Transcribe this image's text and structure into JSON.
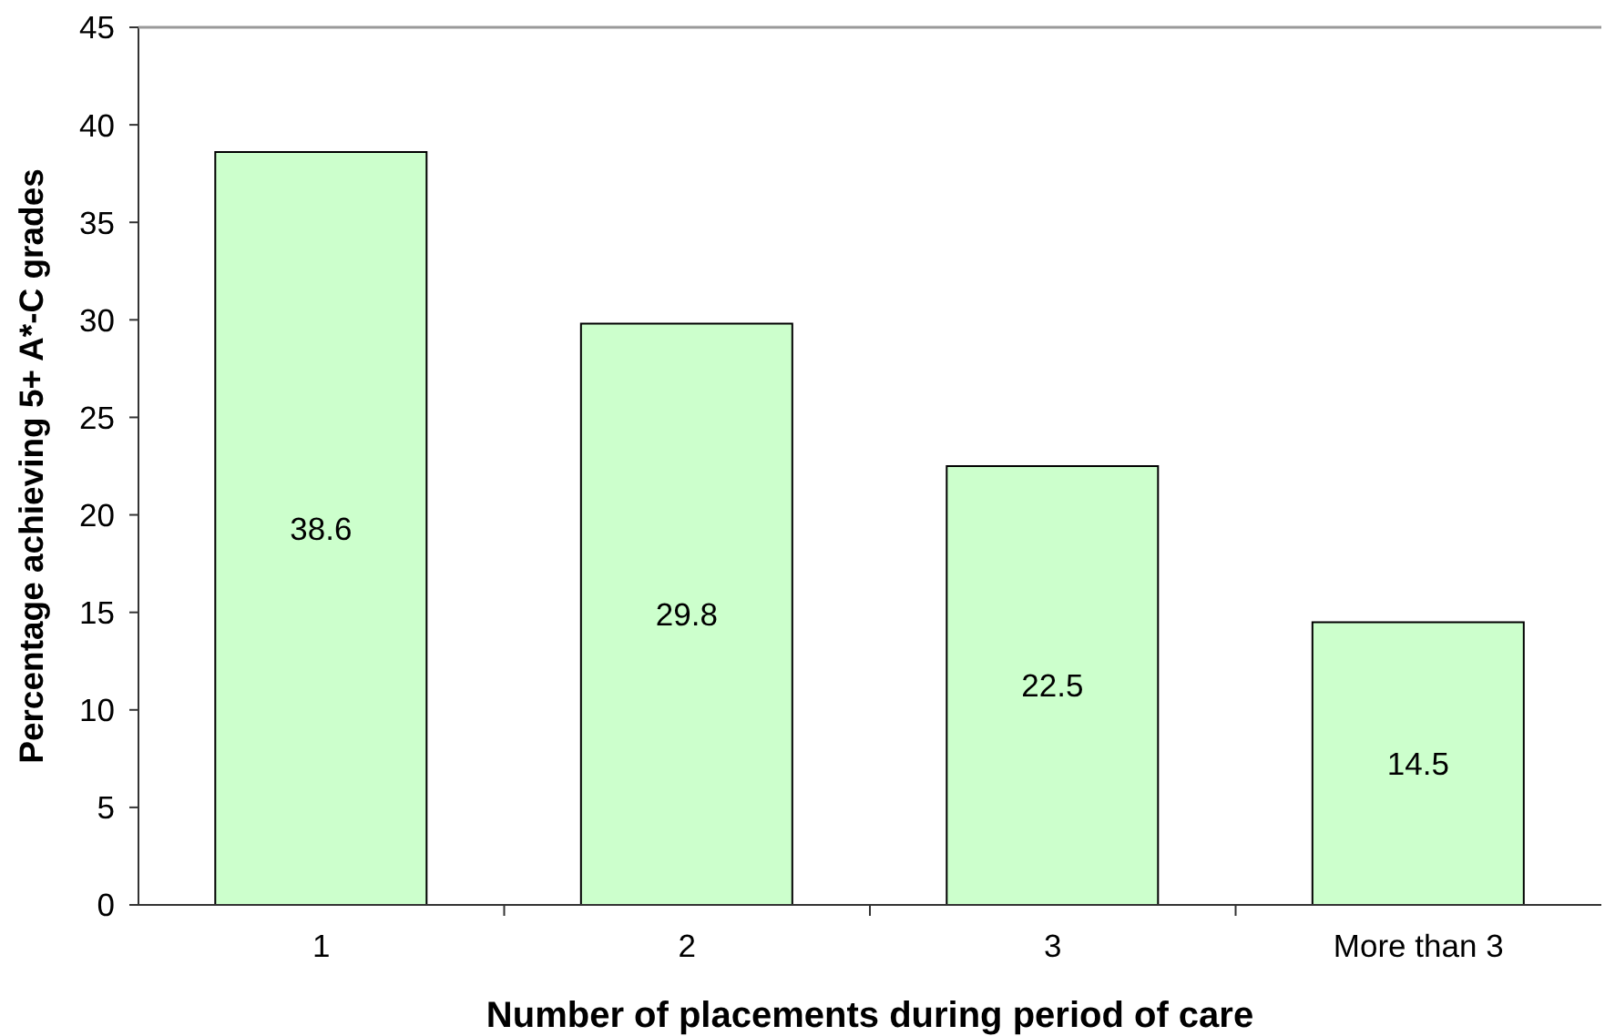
{
  "chart_data": {
    "type": "bar",
    "xlabel": "Number of placements during period of care",
    "ylabel": "Percentage achieving 5+ A*-C grades",
    "categories": [
      "1",
      "2",
      "3",
      "More than 3"
    ],
    "values": [
      38.6,
      29.8,
      22.5,
      14.5
    ],
    "color": "#ccffcc",
    "ylim": [
      0,
      45
    ],
    "yticks": [
      0,
      5,
      10,
      15,
      20,
      25,
      30,
      35,
      40,
      45
    ],
    "data_labels": true
  }
}
